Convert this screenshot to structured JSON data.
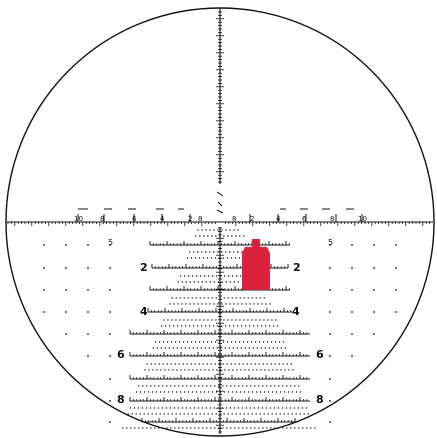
{
  "reticle": {
    "ink_color": "#111111",
    "target_color": "#d8233a",
    "target_icon": "silhouette-target",
    "background": "#ffffff",
    "horizontal_labels": {
      "left": [
        "10",
        "8",
        "6",
        "4",
        "2",
        "8"
      ],
      "right": [
        "8",
        "2",
        "4",
        "6",
        "8",
        "10"
      ]
    },
    "row_labels": [
      {
        "left": "5",
        "right": "5"
      },
      {
        "left": "2",
        "right": "2"
      },
      {
        "left": "4",
        "right": "4"
      },
      {
        "left": "6",
        "right": "6"
      },
      {
        "left": "8",
        "right": "8"
      }
    ]
  }
}
